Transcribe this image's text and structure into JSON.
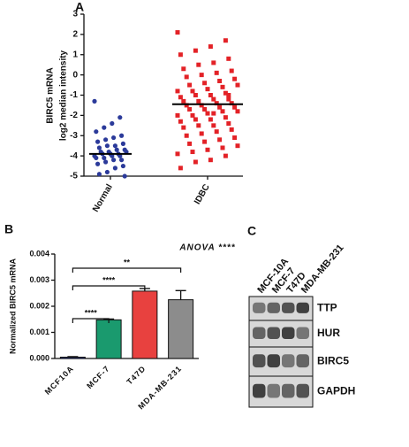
{
  "chart_data": [
    {
      "type": "strip",
      "panel": "A",
      "ylabel": [
        "BIRC5 mRNA",
        "log2 median intensity"
      ],
      "categories": [
        "Normal",
        "IDBC"
      ],
      "colors": [
        "#2b3a9a",
        "#e32227"
      ],
      "markers": [
        "circle",
        "square"
      ],
      "values": [
        [
          -1.3,
          -2.1,
          -2.4,
          -2.6,
          -2.8,
          -3.0,
          -3.1,
          -3.2,
          -3.3,
          -3.4,
          -3.5,
          -3.5,
          -3.6,
          -3.7,
          -3.7,
          -3.8,
          -3.8,
          -3.8,
          -3.9,
          -3.9,
          -3.9,
          -4.0,
          -4.0,
          -4.0,
          -4.1,
          -4.1,
          -4.2,
          -4.2,
          -4.3,
          -4.4,
          -4.5,
          -4.6,
          -4.8,
          -4.9,
          -5.0
        ],
        [
          2.1,
          1.7,
          1.4,
          1.2,
          1.0,
          0.8,
          0.6,
          0.5,
          0.3,
          0.2,
          0.1,
          0.0,
          -0.1,
          -0.2,
          -0.3,
          -0.4,
          -0.5,
          -0.5,
          -0.6,
          -0.7,
          -0.8,
          -0.8,
          -0.9,
          -1.0,
          -1.0,
          -1.1,
          -1.2,
          -1.2,
          -1.3,
          -1.3,
          -1.4,
          -1.4,
          -1.5,
          -1.5,
          -1.6,
          -1.6,
          -1.7,
          -1.7,
          -1.8,
          -1.8,
          -1.9,
          -2.0,
          -2.0,
          -2.1,
          -2.2,
          -2.2,
          -2.3,
          -2.4,
          -2.5,
          -2.5,
          -2.6,
          -2.7,
          -2.8,
          -2.9,
          -3.0,
          -3.1,
          -3.2,
          -3.3,
          -3.4,
          -3.5,
          -3.6,
          -3.7,
          -3.8,
          -3.9,
          -4.0,
          -4.2,
          -4.3,
          -4.6,
          -1.0,
          -1.9
        ]
      ],
      "means": [
        -3.9,
        -1.45
      ],
      "ylim": [
        -5,
        3
      ],
      "yticks": [
        -5,
        -4,
        -3,
        -2,
        -1,
        0,
        1,
        2,
        3
      ]
    },
    {
      "type": "bar",
      "panel": "B",
      "ylabel": "Normalized BIRC5 mRNA",
      "annotation": "ANOVA ****",
      "categories": [
        "MCF10A",
        "MCF-7",
        "T47D",
        "MDA-MB-231"
      ],
      "values": [
        5e-05,
        0.00148,
        0.00258,
        0.00225
      ],
      "errors": [
        2e-05,
        3e-05,
        0.0001,
        0.00035
      ],
      "colors": [
        "#2b3a9a",
        "#1a9a6e",
        "#e8413f",
        "#8c8c8c"
      ],
      "significance": [
        "****",
        "****",
        "**"
      ],
      "ylim": [
        0,
        0.004
      ],
      "yticks": [
        {
          "value": 0,
          "label": "0.000"
        },
        {
          "value": 0.001,
          "label": "0.001"
        },
        {
          "value": 0.002,
          "label": "0.002"
        },
        {
          "value": 0.003,
          "label": "0.003"
        },
        {
          "value": 0.004,
          "label": "0.004"
        }
      ]
    }
  ],
  "panel_c": {
    "label": "C",
    "lanes": [
      "MCF-10A",
      "MCF-7",
      "T47D",
      "MDA-MB-231"
    ],
    "rows": [
      "TTP",
      "HUR",
      "BIRC5",
      "GAPDH"
    ]
  }
}
